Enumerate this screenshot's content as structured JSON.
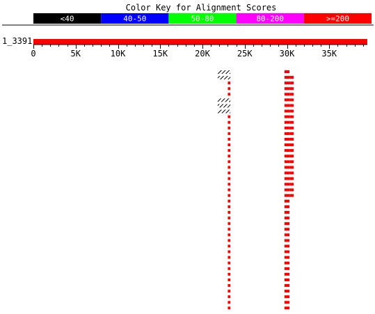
{
  "title": "Color Key for Alignment Scores",
  "color_key": [
    {
      "label": "<40",
      "color": "#000000"
    },
    {
      "label": "40-50",
      "color": "#0000ff"
    },
    {
      "label": "50-80",
      "color": "#00ff00"
    },
    {
      "label": "80-200",
      "color": "#ff00ff"
    },
    {
      "label": ">=200",
      "color": "#ff0000"
    }
  ],
  "query": {
    "name": "1_3391",
    "length": 39500,
    "color": "#ff0000"
  },
  "ruler": {
    "ticks": [
      {
        "value": 0,
        "label": "0"
      },
      {
        "value": 5000,
        "label": "5K"
      },
      {
        "value": 10000,
        "label": "10K"
      },
      {
        "value": 15000,
        "label": "15K"
      },
      {
        "value": 20000,
        "label": "20K"
      },
      {
        "value": 25000,
        "label": "25K"
      },
      {
        "value": 30000,
        "label": "30K"
      },
      {
        "value": 35000,
        "label": "35K"
      }
    ],
    "minor_step": 1000
  },
  "hits": {
    "column_a": {
      "dotted_line": {
        "start": 23000,
        "end": 23300,
        "score_class": ">=200"
      },
      "hatched_marks": [
        {
          "start": 21800,
          "end": 23300,
          "rows": [
            0,
            1
          ]
        },
        {
          "start": 21800,
          "end": 23300,
          "rows": [
            5,
            6,
            7
          ]
        }
      ]
    },
    "column_b": {
      "left_stack": {
        "start": 29700,
        "end": 30300,
        "row_count": 43,
        "score_class": ">=200"
      },
      "right_stack": {
        "start": 30300,
        "end": 30800,
        "row_count": 22,
        "score_class": ">=200"
      }
    }
  }
}
